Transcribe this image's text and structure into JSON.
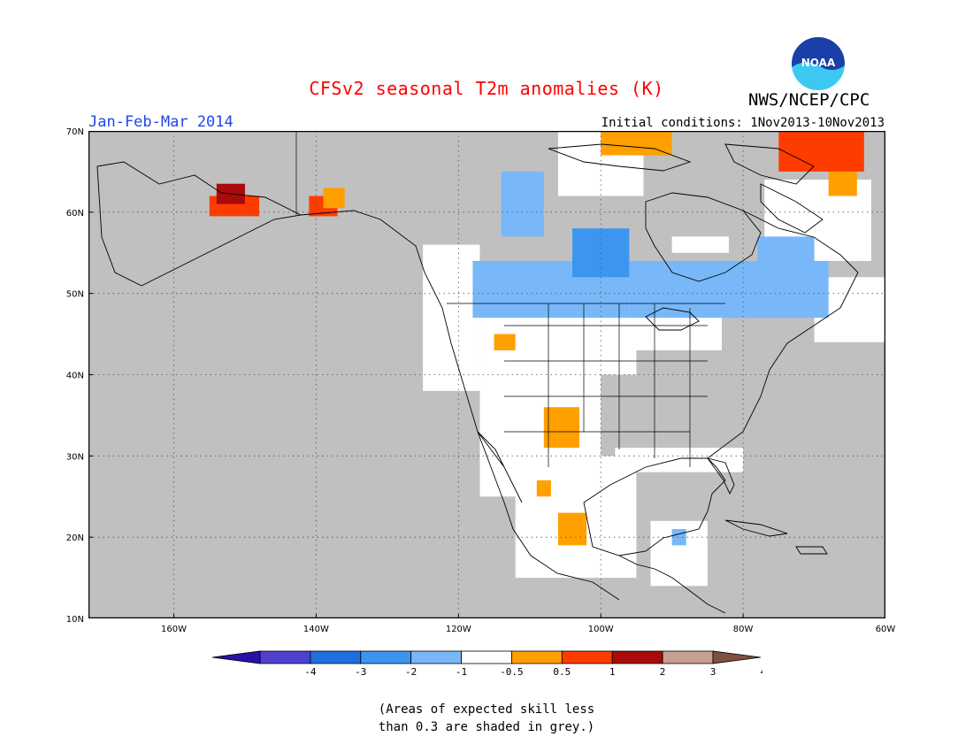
{
  "title": "CFSv2 seasonal T2m anomalies (K)",
  "period": "Jan-Feb-Mar 2014",
  "initial_conditions": "Initial conditions: 1Nov2013-10Nov2013",
  "organization": "NWS/NCEP/CPC",
  "logo_text": "NOAA",
  "note": [
    "(Areas of expected skill less",
    "than 0.3 are shaded in grey.)"
  ],
  "map": {
    "lon_range": [
      -172,
      -60
    ],
    "lat_range": [
      10,
      70
    ],
    "x_ticks": [
      {
        "lon": -160,
        "label": "160W"
      },
      {
        "lon": -140,
        "label": "140W"
      },
      {
        "lon": -120,
        "label": "120W"
      },
      {
        "lon": -100,
        "label": "100W"
      },
      {
        "lon": -80,
        "label": "80W"
      },
      {
        "lon": -60,
        "label": "60W"
      }
    ],
    "y_ticks": [
      {
        "lat": 70,
        "label": "70N"
      },
      {
        "lat": 60,
        "label": "60N"
      },
      {
        "lat": 50,
        "label": "50N"
      },
      {
        "lat": 40,
        "label": "40N"
      },
      {
        "lat": 30,
        "label": "30N"
      },
      {
        "lat": 20,
        "label": "20N"
      },
      {
        "lat": 10,
        "label": "10N"
      }
    ],
    "grey_color": "#c0c0c0",
    "anomaly_regions": [
      {
        "name": "western-alaska",
        "class": "1-2",
        "lon": [
          -155,
          -148
        ],
        "lat": [
          59.5,
          62
        ]
      },
      {
        "name": "western-alaska-core",
        "class": "2-3",
        "lon": [
          -154,
          -150
        ],
        "lat": [
          61,
          63.5
        ]
      },
      {
        "name": "yukon-coast",
        "class": "1-2",
        "lon": [
          -141,
          -137
        ],
        "lat": [
          59.5,
          62
        ]
      },
      {
        "name": "yukon-coast-edge",
        "class": "0.5-1",
        "lon": [
          -139,
          -136
        ],
        "lat": [
          60.5,
          63
        ]
      },
      {
        "name": "northern-canada-plains",
        "class": "-1 to -0.5",
        "lon": [
          -114,
          -108
        ],
        "lat": [
          57,
          65
        ]
      },
      {
        "name": "saskatchewan",
        "class": "-1 to -0.5",
        "lon": [
          -118,
          -96
        ],
        "lat": [
          47,
          54
        ]
      },
      {
        "name": "hudson-west",
        "class": "-2 to -1",
        "lon": [
          -104,
          -96
        ],
        "lat": [
          52,
          58
        ]
      },
      {
        "name": "ontario-quebec",
        "class": "-1 to -0.5",
        "lon": [
          -96,
          -68
        ],
        "lat": [
          47,
          54
        ]
      },
      {
        "name": "hudson-bay-south",
        "class": "-1 to -0.5",
        "lon": [
          -78,
          -70
        ],
        "lat": [
          53,
          57
        ]
      },
      {
        "name": "arctic-islands",
        "class": "0.5-1",
        "lon": [
          -100,
          -90
        ],
        "lat": [
          67,
          70
        ]
      },
      {
        "name": "greenland-baffin",
        "class": "1-2",
        "lon": [
          -75,
          -63
        ],
        "lat": [
          65,
          70
        ]
      },
      {
        "name": "baffin-edge",
        "class": "0.5-1",
        "lon": [
          -68,
          -64
        ],
        "lat": [
          62,
          65
        ]
      },
      {
        "name": "new-mexico",
        "class": "0.5-1",
        "lon": [
          -108,
          -103
        ],
        "lat": [
          31,
          36
        ]
      },
      {
        "name": "idaho",
        "class": "0.5-1",
        "lon": [
          -115,
          -112
        ],
        "lat": [
          43,
          45
        ]
      },
      {
        "name": "west-mexico",
        "class": "0.5-1",
        "lon": [
          -106,
          -102
        ],
        "lat": [
          19,
          23
        ]
      },
      {
        "name": "central-mexico",
        "class": "0.5-1",
        "lon": [
          -109,
          -107
        ],
        "lat": [
          25,
          27
        ]
      },
      {
        "name": "yucatan",
        "class": "-1 to -0.5",
        "lon": [
          -90,
          -88
        ],
        "lat": [
          19,
          21
        ]
      }
    ],
    "white_regions": [
      {
        "name": "us-west-coast",
        "lon": [
          -125,
          -117
        ],
        "lat": [
          38,
          56
        ]
      },
      {
        "name": "us-northern-plains",
        "lon": [
          -117,
          -95
        ],
        "lat": [
          40,
          50
        ]
      },
      {
        "name": "us-southwest",
        "lon": [
          -117,
          -100
        ],
        "lat": [
          25,
          40
        ]
      },
      {
        "name": "mexico-west",
        "lon": [
          -112,
          -95
        ],
        "lat": [
          15,
          30
        ]
      },
      {
        "name": "great-lakes",
        "lon": [
          -96,
          -83
        ],
        "lat": [
          43,
          49
        ]
      },
      {
        "name": "gulf-coast",
        "lon": [
          -98,
          -80
        ],
        "lat": [
          28,
          31
        ]
      },
      {
        "name": "yucatan-central",
        "lon": [
          -93,
          -85
        ],
        "lat": [
          14,
          22
        ]
      },
      {
        "name": "northern-canada-white",
        "lon": [
          -106,
          -94
        ],
        "lat": [
          62,
          70
        ]
      },
      {
        "name": "labrador",
        "lon": [
          -77,
          -62
        ],
        "lat": [
          54,
          64
        ]
      },
      {
        "name": "hudson-bay-edge",
        "lon": [
          -90,
          -82
        ],
        "lat": [
          55,
          57
        ]
      },
      {
        "name": "eastern-canada",
        "lon": [
          -70,
          -60
        ],
        "lat": [
          44,
          52
        ]
      }
    ]
  },
  "legend": {
    "labels": [
      "-4",
      "-3",
      "-2",
      "-1",
      "-0.5",
      "0.5",
      "1",
      "2",
      "3",
      "4"
    ],
    "colors": [
      "#2c10aa",
      "#5040d0",
      "#1e70e0",
      "#3c96f0",
      "#78b8f8",
      "#ffffff",
      "#ffa000",
      "#ff3c00",
      "#aa0a0a",
      "#c8a090",
      "#80503c"
    ]
  }
}
